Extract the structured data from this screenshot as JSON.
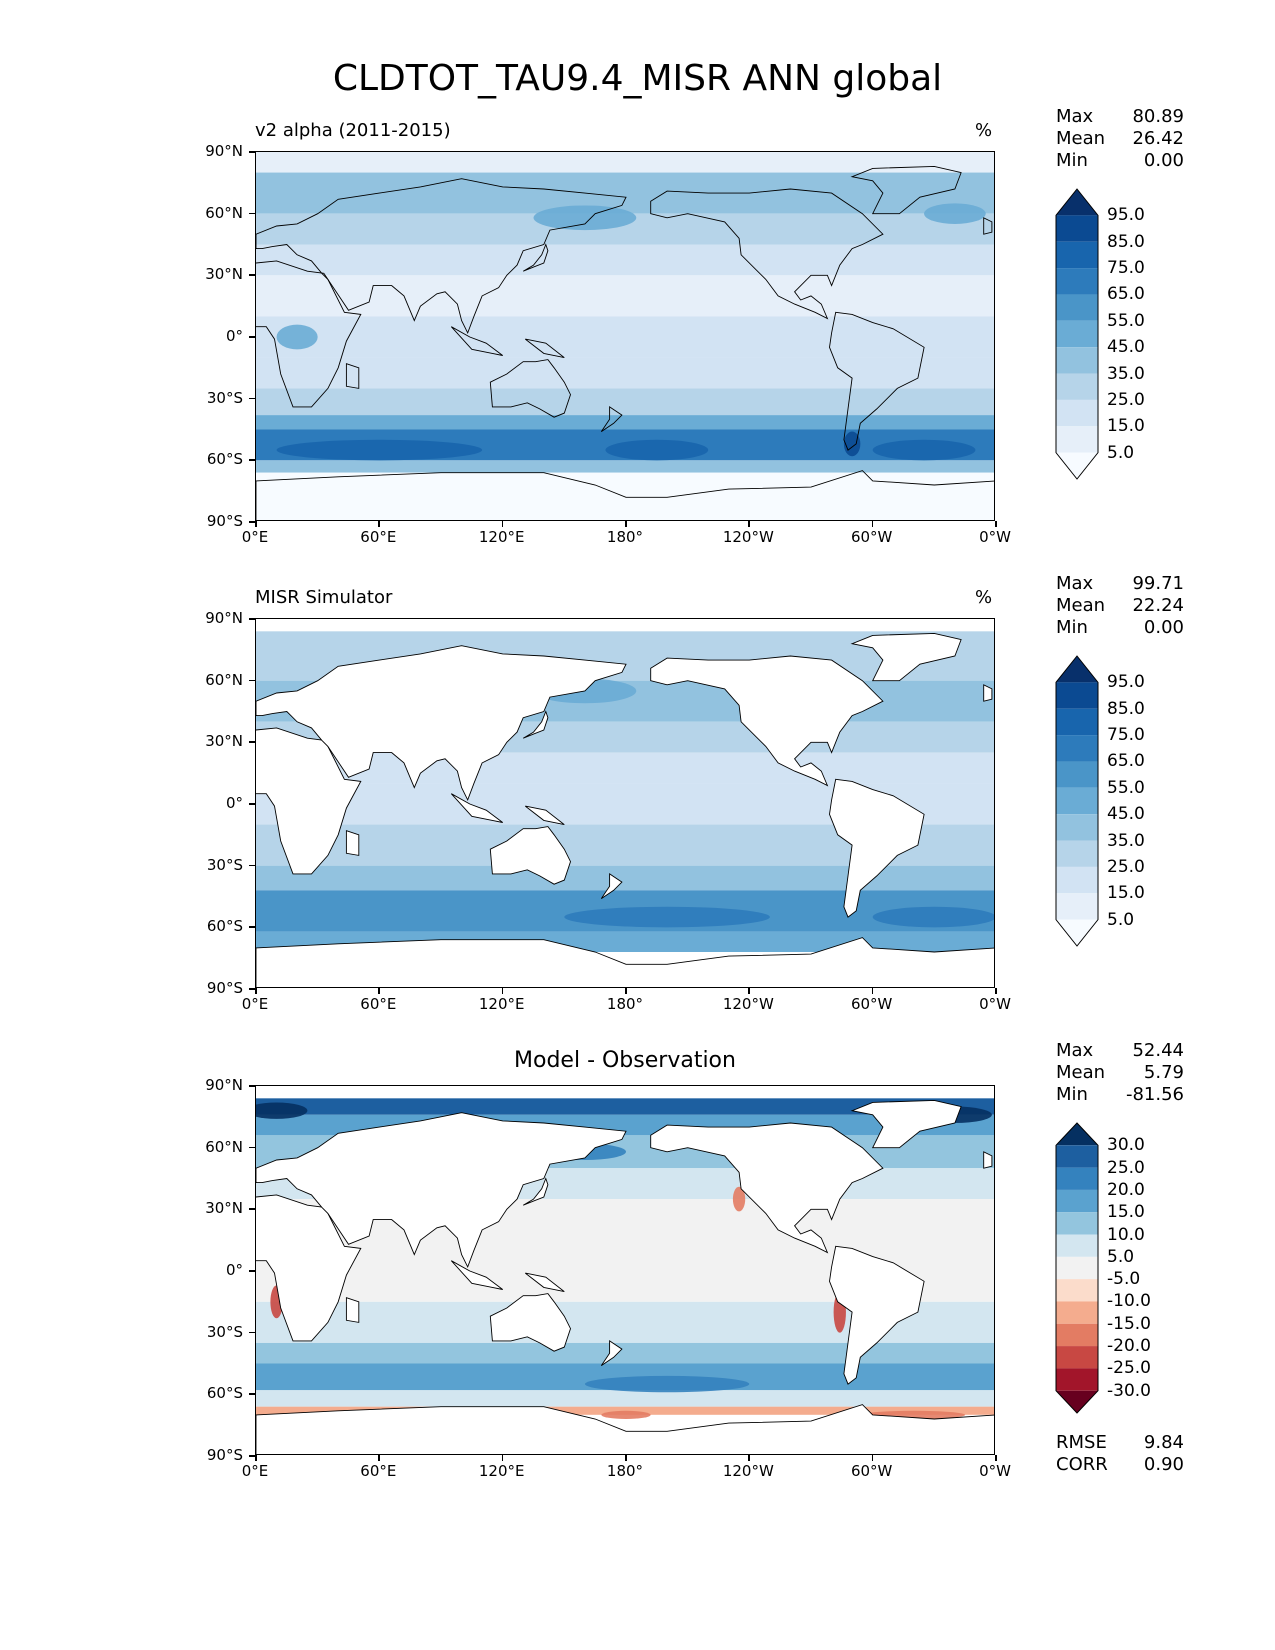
{
  "title": "CLDTOT_TAU9.4_MISR ANN global",
  "lat_ticks": [
    "90°N",
    "60°N",
    "30°N",
    "0°",
    "30°S",
    "60°S",
    "90°S"
  ],
  "lon_ticks": [
    "0°E",
    "60°E",
    "120°E",
    "180°",
    "120°W",
    "60°W",
    "0°W"
  ],
  "seq_levels": [
    "95.0",
    "85.0",
    "75.0",
    "65.0",
    "55.0",
    "45.0",
    "35.0",
    "25.0",
    "15.0",
    "5.0"
  ],
  "seq_colors": [
    "#08306b",
    "#0b4a92",
    "#1865ad",
    "#2d7bbb",
    "#4a95c8",
    "#6aacd5",
    "#92c2df",
    "#b6d4e9",
    "#d2e3f3",
    "#e6eff9",
    "#f7fbff"
  ],
  "diff_levels": [
    "30.0",
    "25.0",
    "20.0",
    "15.0",
    "10.0",
    "5.0",
    "-5.0",
    "-10.0",
    "-15.0",
    "-20.0",
    "-25.0",
    "-30.0"
  ],
  "diff_colors": [
    "#053061",
    "#1d5fa0",
    "#3482be",
    "#5aa2cf",
    "#93c5de",
    "#d3e6f0",
    "#f2f2f2",
    "#fbdccb",
    "#f4ac8e",
    "#e37c63",
    "#c84843",
    "#a2152a",
    "#67001f"
  ],
  "panels": [
    {
      "subtitle": "v2 alpha (2011-2015)",
      "units": "%",
      "stats": {
        "max_label": "Max",
        "max": "80.89",
        "mean_label": "Mean",
        "mean": "26.42",
        "min_label": "Min",
        "min": "0.00"
      }
    },
    {
      "subtitle": "MISR Simulator",
      "units": "%",
      "stats": {
        "max_label": "Max",
        "max": "99.71",
        "mean_label": "Mean",
        "mean": "22.24",
        "min_label": "Min",
        "min": "0.00"
      }
    },
    {
      "subtitle": "Model - Observation",
      "units": "",
      "stats": {
        "max_label": "Max",
        "max": "52.44",
        "mean_label": "Mean",
        "mean": "5.79",
        "min_label": "Min",
        "min": "-81.56"
      },
      "rmse_label": "RMSE",
      "rmse": "9.84",
      "corr_label": "CORR",
      "corr": "0.90"
    }
  ]
}
